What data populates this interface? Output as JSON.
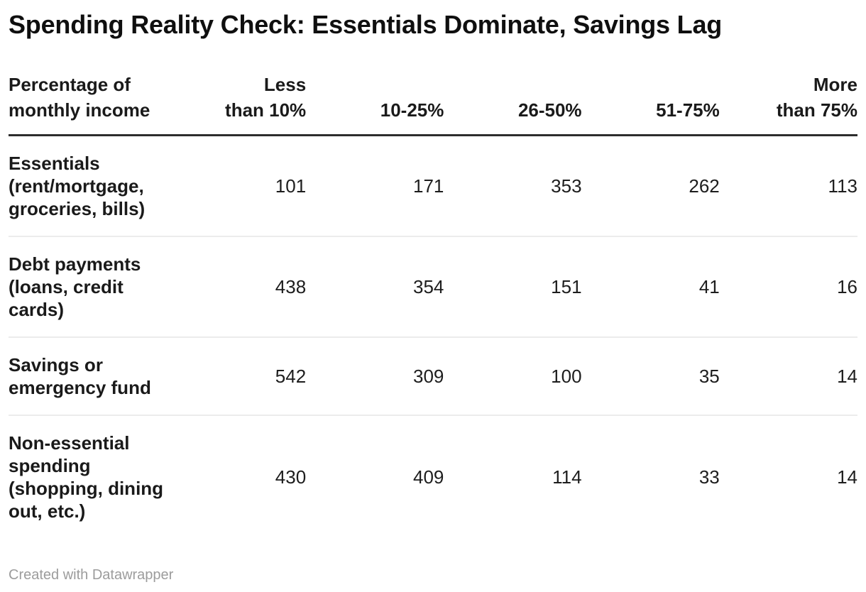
{
  "title": "Spending Reality Check: Essentials Dominate, Savings Lag",
  "footer": {
    "attribution": "Created with Datawrapper"
  },
  "colors": {
    "background": "#ffffff",
    "text": "#1a1a1a",
    "header_rule": "#2d2d2d",
    "row_rule": "#ececec",
    "attribution_text": "#9c9c9c"
  },
  "chart_data": {
    "type": "table",
    "title": "Spending Reality Check: Essentials Dominate, Savings Lag",
    "row_header": "Percentage of\nmonthly income",
    "columns": [
      "Less\nthan 10%",
      "10-25%",
      "26-50%",
      "51-75%",
      "More\nthan 75%"
    ],
    "rows": [
      {
        "label": "Essentials\n(rent/mortgage,\ngroceries, bills)",
        "values": [
          101,
          171,
          353,
          262,
          113
        ]
      },
      {
        "label": "Debt payments\n(loans, credit\ncards)",
        "values": [
          438,
          354,
          151,
          41,
          16
        ]
      },
      {
        "label": "Savings or\nemergency fund",
        "values": [
          542,
          309,
          100,
          35,
          14
        ]
      },
      {
        "label": "Non-essential\nspending\n(shopping, dining\nout, etc.)",
        "values": [
          430,
          409,
          114,
          33,
          14
        ]
      }
    ]
  }
}
